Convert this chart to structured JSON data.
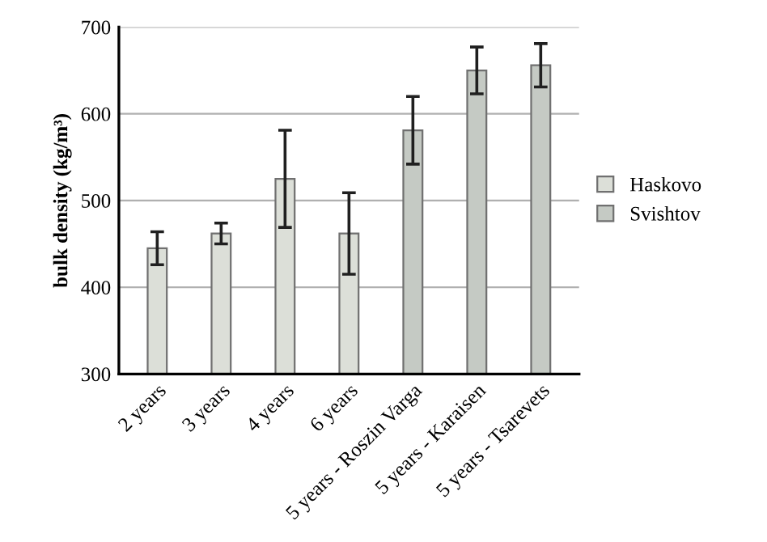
{
  "chart_data": {
    "type": "bar",
    "ylabel": "bulk density (kg/m³)",
    "categories": [
      "2 years",
      "3 years",
      "4 years",
      "6 years",
      "5 years - Roszin Varga",
      "5 years - Karaisen",
      "5 years - Tsarevets"
    ],
    "series": [
      {
        "name": "Haskovo",
        "color": "#dcdfd8",
        "values": [
          445,
          462,
          525,
          462,
          null,
          null,
          null
        ],
        "errors": [
          19,
          12,
          56,
          47,
          null,
          null,
          null
        ]
      },
      {
        "name": "Svishtov",
        "color": "#c5cac4",
        "values": [
          null,
          null,
          null,
          null,
          581,
          650,
          656
        ],
        "errors": [
          null,
          null,
          null,
          null,
          39,
          27,
          25
        ]
      }
    ],
    "ylim": [
      300,
      700
    ],
    "yticks": [
      300,
      400,
      500,
      600,
      700
    ],
    "grid": "y",
    "legend": "right"
  }
}
